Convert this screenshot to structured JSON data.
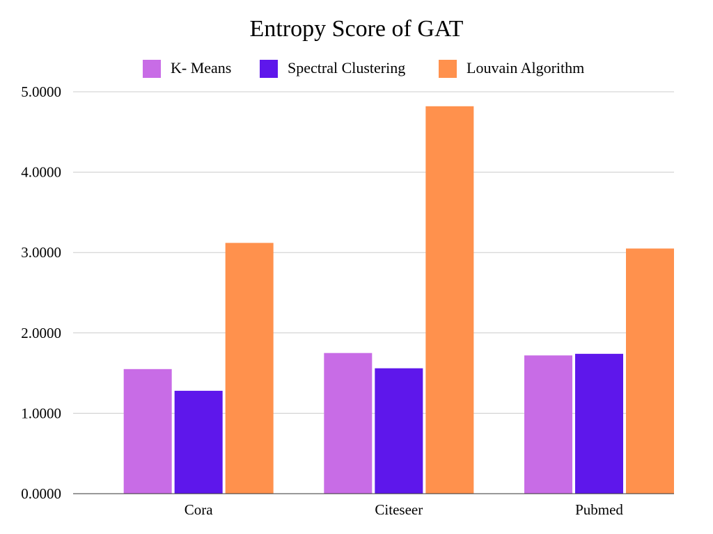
{
  "chart_data": {
    "type": "bar",
    "title": "Entropy Score of GAT",
    "categories": [
      "Cora",
      "Citeseer",
      "Pubmed"
    ],
    "series": [
      {
        "name": "K- Means",
        "color": "#c86ce6",
        "values": [
          1.55,
          1.75,
          1.72
        ]
      },
      {
        "name": "Spectral Clustering",
        "color": "#5e17eb",
        "values": [
          1.28,
          1.56,
          1.74
        ]
      },
      {
        "name": "Louvain Algorithm",
        "color": "#ff914d",
        "values": [
          3.12,
          4.82,
          3.05
        ]
      }
    ],
    "xlabel": "",
    "ylabel": "",
    "ylim": [
      0,
      5
    ],
    "yticks": [
      "0.0000",
      "1.0000",
      "2.0000",
      "3.0000",
      "4.0000",
      "5.0000"
    ],
    "grid": true,
    "legend_position": "top"
  }
}
